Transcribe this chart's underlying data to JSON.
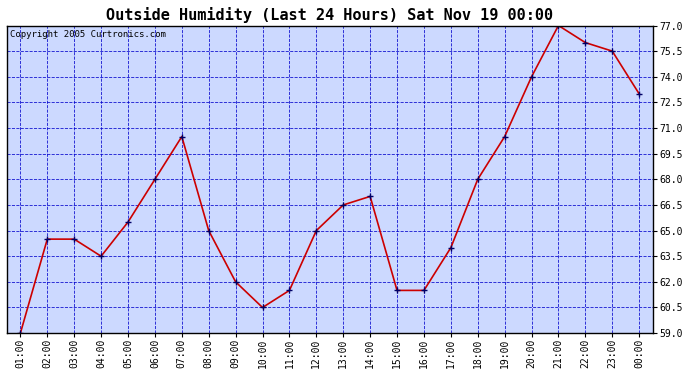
{
  "title": "Outside Humidity (Last 24 Hours) Sat Nov 19 00:00",
  "copyright": "Copyright 2005 Curtronics.com",
  "x_labels": [
    "01:00",
    "02:00",
    "03:00",
    "04:00",
    "05:00",
    "06:00",
    "07:00",
    "08:00",
    "09:00",
    "10:00",
    "11:00",
    "12:00",
    "13:00",
    "14:00",
    "15:00",
    "16:00",
    "17:00",
    "18:00",
    "19:00",
    "20:00",
    "21:00",
    "22:00",
    "23:00",
    "00:00"
  ],
  "y_values": [
    59.0,
    64.5,
    64.5,
    63.5,
    65.5,
    68.0,
    70.5,
    65.0,
    62.0,
    60.5,
    61.5,
    65.0,
    66.5,
    67.0,
    61.5,
    61.5,
    64.0,
    68.0,
    70.5,
    74.0,
    77.0,
    76.0,
    75.5,
    73.0
  ],
  "ylim_min": 59.0,
  "ylim_max": 77.0,
  "ytick_step": 1.5,
  "line_color": "#cc0000",
  "marker": "+",
  "marker_color": "#000066",
  "bg_color": "#ccd9ff",
  "grid_color": "#0000cc",
  "title_fontsize": 11,
  "copyright_fontsize": 6.5,
  "axis_label_fontsize": 7
}
